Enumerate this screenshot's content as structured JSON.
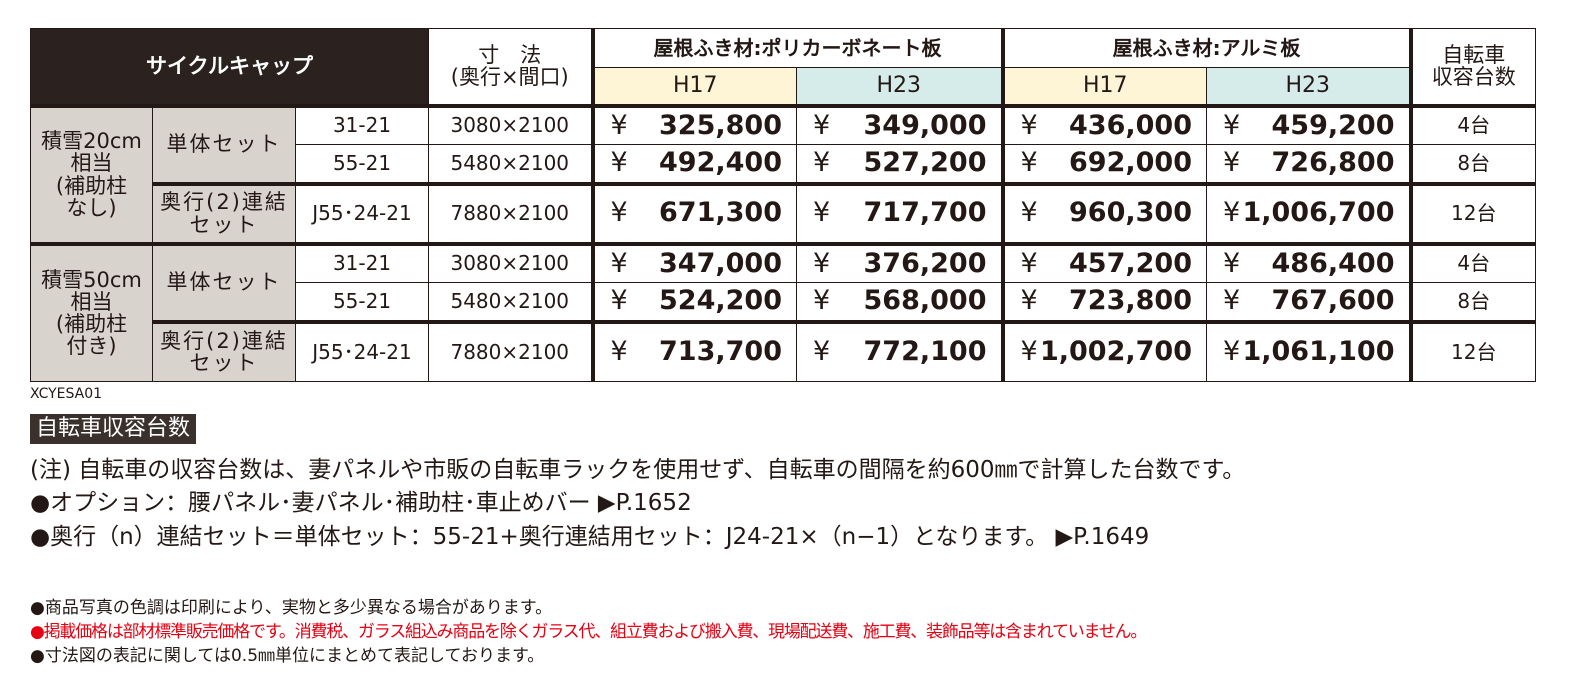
{
  "table": {
    "currency": "¥",
    "header": {
      "product": "サイクルキャップ",
      "size": "寸　法",
      "size_note": "(奥行×間口)",
      "roofs": [
        {
          "name": "屋根ふき材:ポリカーボネート板",
          "heights": [
            "H17",
            "H23"
          ]
        },
        {
          "name": "屋根ふき材:アルミ板",
          "heights": [
            "H17",
            "H23"
          ]
        }
      ],
      "capacity": [
        "自転車",
        "収容台数"
      ]
    },
    "groups": [
      {
        "label": [
          "積雪20cm",
          "相当",
          "(補助柱",
          "なし)"
        ],
        "sets": [
          {
            "name": [
              "単体セット"
            ],
            "rows": [
              {
                "code": "31-21",
                "size": "3080×2100",
                "prices": [
                  "325,800",
                  "349,000",
                  "436,000",
                  "459,200"
                ],
                "capacity": "4台"
              },
              {
                "code": "55-21",
                "size": "5480×2100",
                "prices": [
                  "492,400",
                  "527,200",
                  "692,000",
                  "726,800"
                ],
                "capacity": "8台"
              }
            ]
          },
          {
            "name": [
              "奥行(2)連結",
              "セット"
            ],
            "rows": [
              {
                "code": "J55･24-21",
                "size": "7880×2100",
                "prices": [
                  "671,300",
                  "717,700",
                  "960,300",
                  "1,006,700"
                ],
                "capacity": "12台"
              }
            ]
          }
        ]
      },
      {
        "label": [
          "積雪50cm",
          "相当",
          "(補助柱",
          "付き)"
        ],
        "sets": [
          {
            "name": [
              "単体セット"
            ],
            "rows": [
              {
                "code": "31-21",
                "size": "3080×2100",
                "prices": [
                  "347,000",
                  "376,200",
                  "457,200",
                  "486,400"
                ],
                "capacity": "4台"
              },
              {
                "code": "55-21",
                "size": "5480×2100",
                "prices": [
                  "524,200",
                  "568,000",
                  "723,800",
                  "767,600"
                ],
                "capacity": "8台"
              }
            ]
          },
          {
            "name": [
              "奥行(2)連結",
              "セット"
            ],
            "rows": [
              {
                "code": "J55･24-21",
                "size": "7880×2100",
                "prices": [
                  "713,700",
                  "772,100",
                  "1,002,700",
                  "1,061,100"
                ],
                "capacity": "12台"
              }
            ]
          }
        ]
      }
    ]
  },
  "footer": {
    "code": "XCYESA01",
    "capacity_title": "自転車収容台数",
    "notes": [
      "(注) 自転車の収容台数は、妻パネルや市販の自転車ラックを使用せず、自転車の間隔を約600㎜で計算した台数です。",
      "●オプション：腰パネル･妻パネル･補助柱･車止めバー ▶P.1652",
      "●奥行（n）連結セット＝単体セット：55-21+奥行連結用セット：J24-21×（n−1）となります。 ▶P.1649"
    ],
    "disclaimers": [
      {
        "text": "●商品写真の色調は印刷により、実物と多少異なる場合があります。",
        "highlight": false
      },
      {
        "text": "●掲載価格は部材標準販売価格です。消費税、ガラス組込み商品を除くガラス代、組立費および搬入費、現場配送費、施工費、装飾品等は含まれていません。",
        "highlight": true
      },
      {
        "text": "●寸法図の表記に関しては0.5㎜単位にまとめて表記しております。",
        "highlight": false
      }
    ]
  }
}
